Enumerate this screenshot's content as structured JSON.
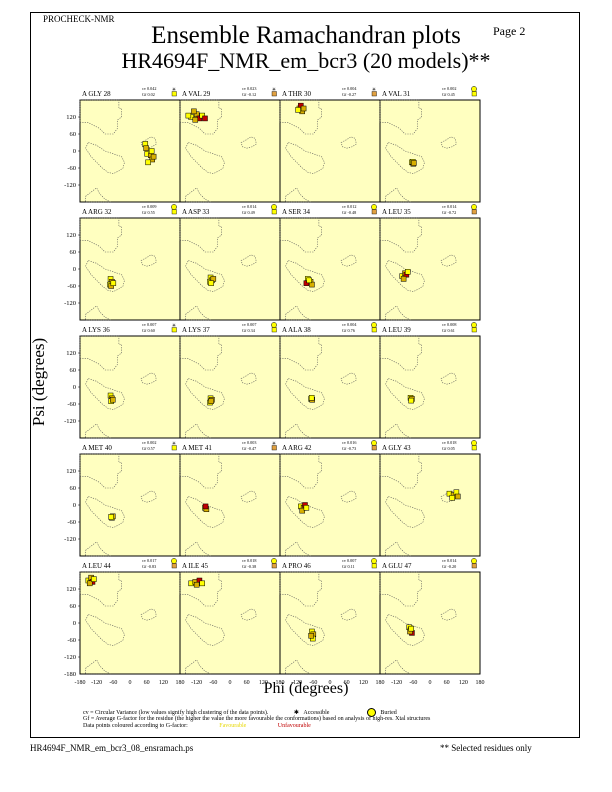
{
  "header": {
    "program": "PROCHECK-NMR",
    "page": "Page  2"
  },
  "title": {
    "line1": "Ensemble Ramachandran plots",
    "line2": "HR4694F_NMR_em_bcr3 (20 models)**"
  },
  "axes": {
    "xlabel": "Phi (degrees)",
    "ylabel": "Psi (degrees)",
    "xticks": [
      "-180",
      "-120",
      "-60",
      "0",
      "60",
      "120",
      "180"
    ],
    "yticks": [
      "180",
      "120",
      "60",
      "0",
      "-60",
      "-120",
      "-180"
    ],
    "panel_yticks": [
      "120",
      "60",
      "0",
      "-60",
      "-120"
    ]
  },
  "legend": {
    "accessible": "Accessible",
    "buried": "Buried",
    "favourable": "Favourable",
    "unfavourable": "Unfavourable",
    "note_cv": "cv = Circular Variance (low values signify high clustering of the data points).",
    "note_gf": "Gf = Average G-factor for the residue (the higher the value the more favourable the conformations) based on analysis of high-res. Xtal structures",
    "note_colour": "Data points coloured according to G-factor:"
  },
  "footer": {
    "filename": "HR4694F_NMR_em_bcr3_08_ensramach.ps",
    "note": "** Selected residues only"
  },
  "colors": {
    "panel_bg": "#ffffc0",
    "favourable": "#ffff00",
    "unfavourable": "#c00000",
    "region_outline": "#555555"
  },
  "chart_data": {
    "type": "scatter",
    "xlabel": "Phi (degrees)",
    "ylabel": "Psi (degrees)",
    "xlim": [
      -180,
      180
    ],
    "ylim": [
      -180,
      180
    ],
    "panels": [
      {
        "residue": "A GLY 28",
        "cv": "cv 0.042",
        "gf": "Gf 0.02",
        "buried": false,
        "points": [
          [
            55,
            25
          ],
          [
            58,
            10
          ],
          [
            62,
            -10
          ],
          [
            75,
            -15
          ],
          [
            78,
            0
          ],
          [
            80,
            -30
          ],
          [
            65,
            -40
          ],
          [
            85,
            -20
          ]
        ]
      },
      {
        "residue": "A VAL 29",
        "cv": "cv 0.023",
        "gf": "Gf -0.12",
        "buried": false,
        "points": [
          [
            -140,
            120
          ],
          [
            -120,
            130
          ],
          [
            -110,
            115
          ],
          [
            -130,
            140
          ],
          [
            -100,
            125
          ],
          [
            -90,
            115
          ],
          [
            -150,
            125
          ],
          [
            -125,
            110
          ]
        ]
      },
      {
        "residue": "A THR 30",
        "cv": "cv 0.004",
        "gf": "Gf -0.27",
        "buried": false,
        "points": [
          [
            -110,
            150
          ],
          [
            -100,
            140
          ],
          [
            -105,
            160
          ],
          [
            -95,
            150
          ],
          [
            -115,
            145
          ]
        ]
      },
      {
        "residue": "A VAL 31",
        "cv": "cv 0.002",
        "gf": "Gf 0.45",
        "buried": true,
        "points": [
          [
            -65,
            -40
          ],
          [
            -60,
            -45
          ],
          [
            -62,
            -38
          ],
          [
            -58,
            -42
          ]
        ]
      },
      {
        "residue": "A ARG 32",
        "cv": "cv 0.009",
        "gf": "Gf 0.55",
        "buried": true,
        "points": [
          [
            -70,
            -35
          ],
          [
            -65,
            -45
          ],
          [
            -72,
            -55
          ],
          [
            -68,
            -60
          ],
          [
            -60,
            -50
          ]
        ]
      },
      {
        "residue": "A ASP 33",
        "cv": "cv 0.014",
        "gf": "Gf 0.49",
        "buried": true,
        "points": [
          [
            -70,
            -30
          ],
          [
            -65,
            -40
          ],
          [
            -72,
            -45
          ],
          [
            -60,
            -35
          ],
          [
            -68,
            -50
          ]
        ]
      },
      {
        "residue": "A SER 34",
        "cv": "cv 0.012",
        "gf": "Gf -0.48",
        "buried": true,
        "points": [
          [
            -80,
            -35
          ],
          [
            -70,
            -45
          ],
          [
            -85,
            -50
          ],
          [
            -65,
            -55
          ],
          [
            -75,
            -40
          ]
        ]
      },
      {
        "residue": "A LEU 35",
        "cv": "cv 0.014",
        "gf": "Gf -0.72",
        "buried": true,
        "points": [
          [
            -100,
            -25
          ],
          [
            -90,
            -15
          ],
          [
            -85,
            -20
          ],
          [
            -95,
            -35
          ],
          [
            -80,
            -10
          ]
        ]
      },
      {
        "residue": "A LYS 36",
        "cv": "cv 0.007",
        "gf": "Gf 0.60",
        "buried": false,
        "points": [
          [
            -70,
            -30
          ],
          [
            -65,
            -40
          ],
          [
            -68,
            -50
          ],
          [
            -62,
            -45
          ]
        ]
      },
      {
        "residue": "A LYS 37",
        "cv": "cv 0.007",
        "gf": "Gf 0.34",
        "buried": true,
        "points": [
          [
            -70,
            -40
          ],
          [
            -65,
            -45
          ],
          [
            -72,
            -55
          ],
          [
            -68,
            -50
          ]
        ]
      },
      {
        "residue": "A ALA 38",
        "cv": "cv 0.004",
        "gf": "Gf 0.76",
        "buried": true,
        "points": [
          [
            -68,
            -42
          ],
          [
            -64,
            -45
          ],
          [
            -66,
            -38
          ]
        ]
      },
      {
        "residue": "A LEU 39",
        "cv": "cv 0.008",
        "gf": "Gf 0.61",
        "buried": true,
        "points": [
          [
            -70,
            -38
          ],
          [
            -65,
            -42
          ],
          [
            -68,
            -48
          ]
        ]
      },
      {
        "residue": "A MET 40",
        "cv": "cv 0.002",
        "gf": "Gf 0.57",
        "buried": false,
        "points": [
          [
            -65,
            -45
          ],
          [
            -62,
            -40
          ],
          [
            -68,
            -42
          ]
        ]
      },
      {
        "residue": "A MET 41",
        "cv": "cv 0.003",
        "gf": "Gf -0.47",
        "buried": false,
        "points": [
          [
            -90,
            -10
          ],
          [
            -85,
            -15
          ],
          [
            -88,
            -5
          ]
        ]
      },
      {
        "residue": "A ARG 42",
        "cv": "cv 0.016",
        "gf": "Gf -0.73",
        "buried": true,
        "points": [
          [
            -105,
            -5
          ],
          [
            -95,
            -10
          ],
          [
            -90,
            0
          ],
          [
            -100,
            -20
          ],
          [
            -85,
            -10
          ]
        ]
      },
      {
        "residue": "A GLY 43",
        "cv": "cv 0.018",
        "gf": "Gf 0.05",
        "buried": true,
        "points": [
          [
            70,
            40
          ],
          [
            85,
            35
          ],
          [
            95,
            45
          ],
          [
            100,
            30
          ],
          [
            80,
            25
          ]
        ]
      },
      {
        "residue": "A LEU 44",
        "cv": "cv 0.017",
        "gf": "Gf -0.83",
        "buried": true,
        "points": [
          [
            -150,
            150
          ],
          [
            -140,
            160
          ],
          [
            -135,
            145
          ],
          [
            -145,
            140
          ],
          [
            -130,
            155
          ]
        ]
      },
      {
        "residue": "A ILE 45",
        "cv": "cv 0.018",
        "gf": "Gf -0.38",
        "buried": true,
        "points": [
          [
            -140,
            140
          ],
          [
            -125,
            145
          ],
          [
            -110,
            150
          ],
          [
            -120,
            135
          ],
          [
            -100,
            140
          ]
        ]
      },
      {
        "residue": "A PRO 46",
        "cv": "cv 0.007",
        "gf": "Gf 0.11",
        "buried": true,
        "points": [
          [
            -65,
            -30
          ],
          [
            -60,
            -40
          ],
          [
            -62,
            -55
          ],
          [
            -68,
            -45
          ]
        ]
      },
      {
        "residue": "A GLU 47",
        "cv": "cv 0.014",
        "gf": "Gf -0.20",
        "buried": true,
        "points": [
          [
            -75,
            -15
          ],
          [
            -70,
            -25
          ],
          [
            -65,
            -35
          ],
          [
            -72,
            -30
          ],
          [
            -68,
            -20
          ]
        ]
      }
    ]
  }
}
